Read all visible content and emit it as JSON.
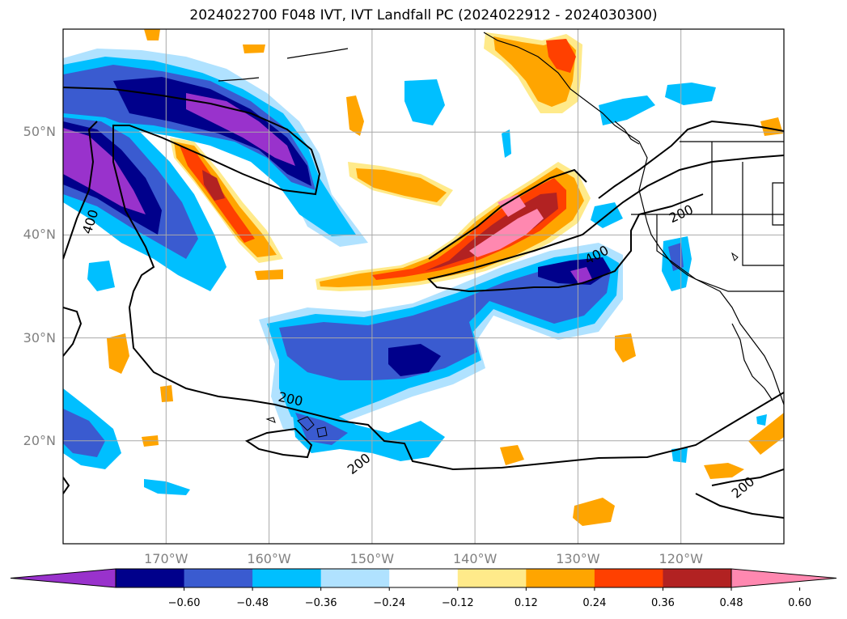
{
  "title": "2024022700 F048 IVT, IVT Landfall PC (2024022912 - 2024030300)",
  "map": {
    "projection": "cylindrical",
    "lon_range": [
      -180,
      -110
    ],
    "lat_range": [
      10,
      60
    ],
    "gridlines": true,
    "lat_ticks": [
      {
        "lat": 50,
        "label": "50°N"
      },
      {
        "lat": 40,
        "label": "40°N"
      },
      {
        "lat": 30,
        "label": "30°N"
      },
      {
        "lat": 20,
        "label": "20°N"
      }
    ],
    "lon_ticks": [
      {
        "lon": -170,
        "label": "170°W"
      },
      {
        "lon": -160,
        "label": "160°W"
      },
      {
        "lon": -150,
        "label": "150°W"
      },
      {
        "lon": -140,
        "label": "140°W"
      },
      {
        "lon": -130,
        "label": "130°W"
      },
      {
        "lon": -120,
        "label": "120°W"
      }
    ],
    "contour_labels": [
      {
        "text": "400",
        "lon": -177.4,
        "lat": 41.3,
        "angle": -72
      },
      {
        "text": "200",
        "lon": -157.9,
        "lat": 24.1,
        "angle": 12
      },
      {
        "text": "200",
        "lon": -151.3,
        "lat": 17.8,
        "angle": -38
      },
      {
        "text": "400",
        "lon": -128.2,
        "lat": 38.1,
        "angle": -28
      },
      {
        "text": "200",
        "lon": -120.0,
        "lat": 42.1,
        "angle": -25
      },
      {
        "text": "200",
        "lon": -114.0,
        "lat": 15.5,
        "angle": -40
      }
    ]
  },
  "colorbar": {
    "ticks": [
      "−0.60",
      "−0.48",
      "−0.36",
      "−0.24",
      "−0.12",
      "0.12",
      "0.24",
      "0.36",
      "0.48",
      "0.60"
    ],
    "colors": [
      "#9932cc",
      "#00008b",
      "#3a5bd0",
      "#00bfff",
      "#b0e2ff",
      "#ffffff",
      "#ffea8a",
      "#ffa500",
      "#ff4000",
      "#b22222",
      "#ff88b0"
    ],
    "extend": "both"
  }
}
